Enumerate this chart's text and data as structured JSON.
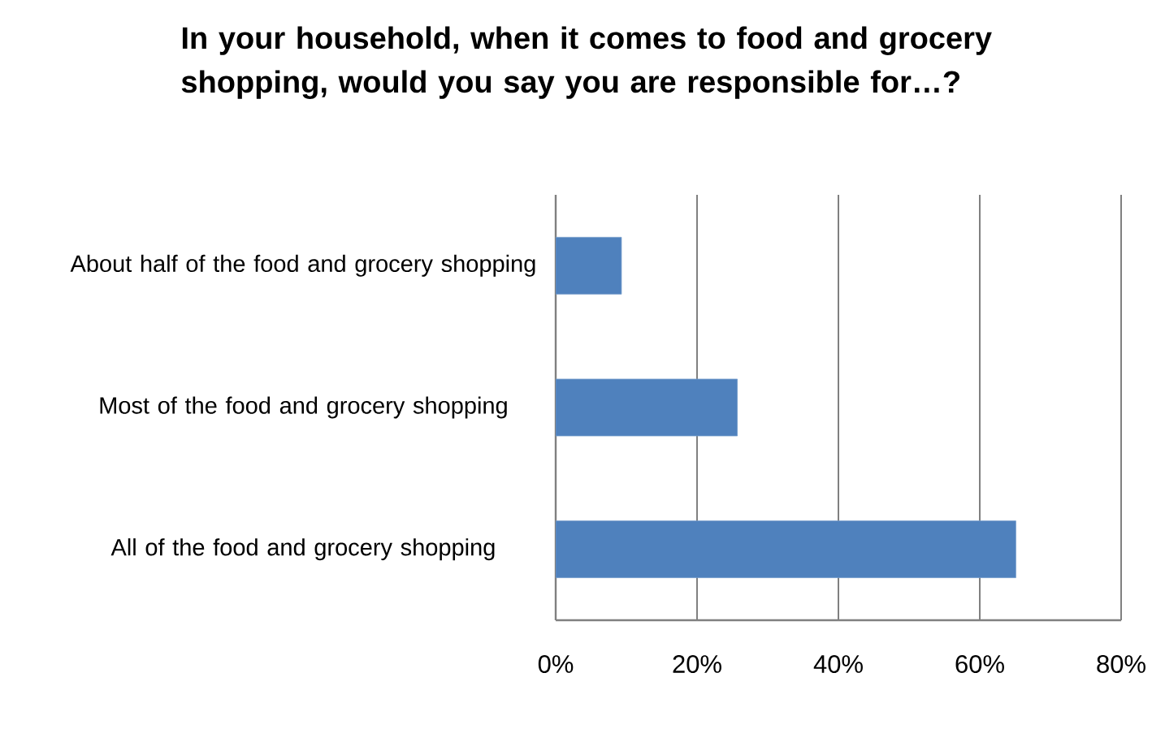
{
  "chart_data": {
    "type": "bar",
    "orientation": "horizontal",
    "title": "In your household, when it comes to food and grocery shopping, would you say you are responsible for…?",
    "categories": [
      "About half of the food and grocery shopping",
      "Most of the food and grocery shopping",
      "All of the food and grocery shopping"
    ],
    "values": [
      9.3,
      25.7,
      65.1
    ],
    "color": "#4f81bd",
    "xlim": [
      0,
      80
    ],
    "xticks": [
      {
        "value": 0,
        "label": "0%"
      },
      {
        "value": 20,
        "label": "20%"
      },
      {
        "value": 40,
        "label": "40%"
      },
      {
        "value": 60,
        "label": "60%"
      },
      {
        "value": 80,
        "label": "80%"
      }
    ],
    "grid": "x"
  }
}
